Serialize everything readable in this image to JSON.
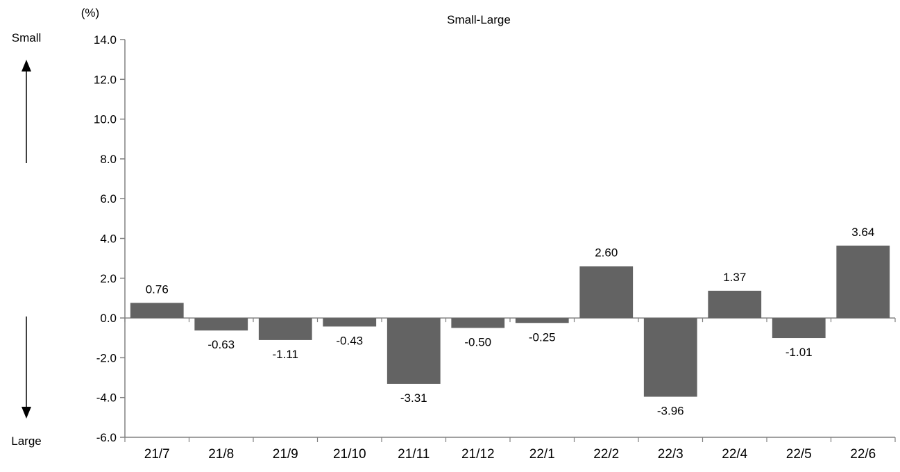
{
  "chart_data": {
    "type": "bar",
    "title": "Small-Large",
    "unit_label": "(%)",
    "direction_labels": {
      "up": "Small",
      "down": "Large"
    },
    "categories": [
      "21/7",
      "21/8",
      "21/9",
      "21/10",
      "21/11",
      "21/12",
      "22/1",
      "22/2",
      "22/3",
      "22/4",
      "22/5",
      "22/6"
    ],
    "values": [
      0.76,
      -0.63,
      -1.11,
      -0.43,
      -3.31,
      -0.5,
      -0.25,
      2.6,
      -3.96,
      1.37,
      -1.01,
      3.64
    ],
    "value_labels": [
      "0.76",
      "-0.63",
      "-1.11",
      "-0.43",
      "-3.31",
      "-0.50",
      "-0.25",
      "2.60",
      "-3.96",
      "1.37",
      "-1.01",
      "3.64"
    ],
    "ylim": [
      -6,
      14
    ],
    "yticks": [
      14,
      12,
      10,
      8,
      6,
      4,
      2,
      0,
      -2,
      -4,
      -6
    ],
    "ytick_labels": [
      "14.0",
      "12.0",
      "10.0",
      "8.0",
      "6.0",
      "4.0",
      "2.0",
      "0.0",
      "-2.0",
      "-4.0",
      "-6.0"
    ],
    "grid": false,
    "legend": "none",
    "bar_color": "#636363",
    "axis_color": "#808080"
  }
}
